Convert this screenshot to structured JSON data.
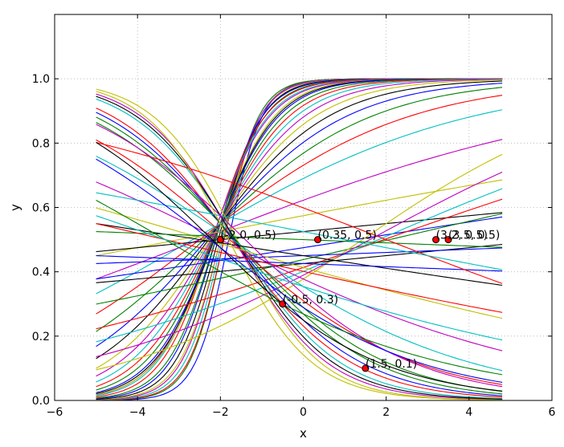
{
  "chart_data": {
    "type": "line",
    "title": "",
    "xlabel": "x",
    "ylabel": "y",
    "xlim": [
      -6,
      6
    ],
    "ylim": [
      0.0,
      1.2
    ],
    "xticks": [
      -6,
      -4,
      -2,
      0,
      2,
      4,
      6
    ],
    "yticks": [
      0.0,
      0.2,
      0.4,
      0.6,
      0.8,
      1.0
    ],
    "grid": true,
    "x_range": [
      -5,
      4.8
    ],
    "colors": [
      "#0000ff",
      "#008000",
      "#ff0000",
      "#00bfbf",
      "#bf00bf",
      "#bfbf00",
      "#000000"
    ],
    "series_model": "logistic y = 1 / (1 + exp(-(a + b*x)))",
    "series": [
      {
        "a": 4.5,
        "b": 2.5
      },
      {
        "a": 4.6,
        "b": 2.4
      },
      {
        "a": 4.4,
        "b": 2.3
      },
      {
        "a": 4.3,
        "b": 2.2
      },
      {
        "a": 4.2,
        "b": 2.1
      },
      {
        "a": 4.0,
        "b": 2.0
      },
      {
        "a": 3.9,
        "b": 1.9
      },
      {
        "a": 3.8,
        "b": 1.8
      },
      {
        "a": 3.6,
        "b": 1.7
      },
      {
        "a": 3.5,
        "b": 1.6
      },
      {
        "a": 3.3,
        "b": 1.5
      },
      {
        "a": 3.2,
        "b": 1.45
      },
      {
        "a": 3.0,
        "b": 1.4
      },
      {
        "a": 2.9,
        "b": 1.35
      },
      {
        "a": 2.8,
        "b": 1.3
      },
      {
        "a": 2.6,
        "b": 1.2
      },
      {
        "a": 2.4,
        "b": 1.1
      },
      {
        "a": 2.2,
        "b": 1.0
      },
      {
        "a": 2.0,
        "b": 0.9
      },
      {
        "a": 1.8,
        "b": 0.8
      },
      {
        "a": 1.6,
        "b": 0.7
      },
      {
        "a": 1.4,
        "b": 0.6
      },
      {
        "a": 1.2,
        "b": 0.5
      },
      {
        "a": 1.0,
        "b": 0.4
      },
      {
        "a": 0.8,
        "b": 0.3
      },
      {
        "a": 0.5,
        "b": 0.2
      },
      {
        "a": 0.3,
        "b": 0.1
      },
      {
        "a": 0.1,
        "b": 0.05
      },
      {
        "a": -0.1,
        "b": 0.08
      },
      {
        "a": -0.25,
        "b": 0.12
      },
      {
        "a": -0.35,
        "b": 0.18
      },
      {
        "a": -0.4,
        "b": 0.22
      },
      {
        "a": -0.45,
        "b": 0.28
      },
      {
        "a": -0.5,
        "b": 0.35
      },
      {
        "a": -0.3,
        "b": 0.05
      },
      {
        "a": -0.2,
        "b": 0.02
      },
      {
        "a": -1.0,
        "b": -0.6
      },
      {
        "a": -1.2,
        "b": -0.7
      },
      {
        "a": -1.3,
        "b": -0.8
      },
      {
        "a": -1.5,
        "b": -0.9
      },
      {
        "a": -1.6,
        "b": -1.0
      },
      {
        "a": -1.4,
        "b": -0.85
      },
      {
        "a": -1.1,
        "b": -0.65
      },
      {
        "a": -0.9,
        "b": -0.55
      },
      {
        "a": -0.8,
        "b": -0.45
      },
      {
        "a": -0.6,
        "b": -0.35
      },
      {
        "a": -0.5,
        "b": -0.25
      },
      {
        "a": -0.35,
        "b": -0.15
      },
      {
        "a": -0.2,
        "b": -0.08
      },
      {
        "a": -0.3,
        "b": -0.02
      },
      {
        "a": 0.0,
        "b": -0.02
      },
      {
        "a": 0.4,
        "b": -0.2
      },
      {
        "a": 0.1,
        "b": -0.1
      },
      {
        "a": -0.7,
        "b": -0.5
      },
      {
        "a": -1.8,
        "b": -1.0
      },
      {
        "a": -1.1,
        "b": -0.5
      },
      {
        "a": -0.9,
        "b": -0.4
      },
      {
        "a": -1.0,
        "b": -0.3
      },
      {
        "a": -0.4,
        "b": -0.12
      },
      {
        "a": -0.6,
        "b": -0.18
      }
    ],
    "points": [
      {
        "x": -2.0,
        "y": 0.5,
        "label": "(-2.0, 0.5)"
      },
      {
        "x": 0.35,
        "y": 0.5,
        "label": "(0.35, 0.5)"
      },
      {
        "x": -0.5,
        "y": 0.3,
        "label": "(-0.5, 0.3)"
      },
      {
        "x": 1.5,
        "y": 0.1,
        "label": "(1.5, 0.1)"
      },
      {
        "x": 3.2,
        "y": 0.5,
        "label": "(3.2, 0.5)"
      },
      {
        "x": 3.5,
        "y": 0.5,
        "label": "(3.5, 0.5)"
      }
    ]
  }
}
